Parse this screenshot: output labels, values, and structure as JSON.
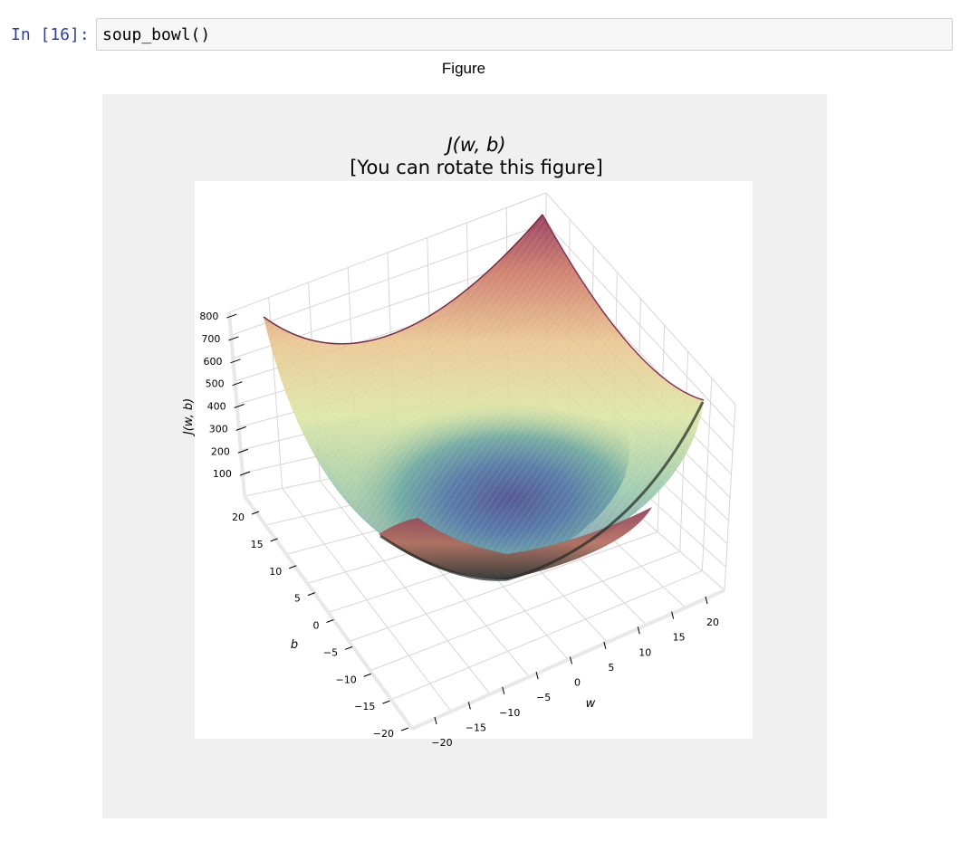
{
  "cell": {
    "prompt": "In [16]:",
    "code": "soup_bowl()"
  },
  "figure": {
    "label": "Figure",
    "title_line1": "J(w, b)",
    "title_line2": "[You can rotate this figure]"
  },
  "chart_data": {
    "type": "surface",
    "zlabel": "J(w, b)",
    "xlabel": "w",
    "ylabel": "b",
    "w_ticks": [
      "−20",
      "−15",
      "−10",
      "−5",
      "0",
      "5",
      "10",
      "15",
      "20"
    ],
    "b_ticks": [
      "−20",
      "−15",
      "−10",
      "−5",
      "0",
      "5",
      "10",
      "15",
      "20"
    ],
    "z_ticks": [
      "100",
      "200",
      "300",
      "400",
      "500",
      "600",
      "700",
      "800"
    ],
    "w_range": [
      -20,
      20
    ],
    "b_range": [
      -20,
      20
    ],
    "z_range": [
      0,
      800
    ],
    "colormap": "Spectral_r",
    "grid": true
  }
}
